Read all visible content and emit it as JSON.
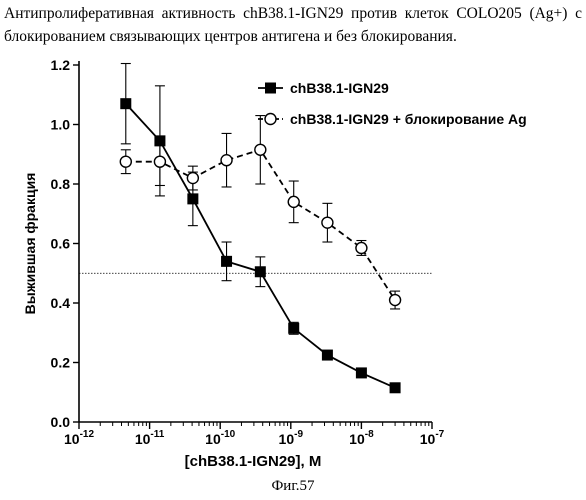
{
  "caption": "Антипролиферативная активность chB38.1-IGN29 против клеток COLO205 (Ag+) с блокированием связывающих центров антигена и без блокирования.",
  "figure_label": "Фиг.57",
  "chart_data": {
    "type": "scatter",
    "xscale": "log",
    "xlabel": "[chB38.1-IGN29], M",
    "ylabel": "Выжившая фракция",
    "xlim": [
      1e-12,
      1e-07
    ],
    "ylim": [
      0.0,
      1.2
    ],
    "x_ticks": [
      {
        "value": 1e-12,
        "base": "10",
        "exp": "-12"
      },
      {
        "value": 1e-11,
        "base": "10",
        "exp": "-11"
      },
      {
        "value": 1e-10,
        "base": "10",
        "exp": "-10"
      },
      {
        "value": 1e-09,
        "base": "10",
        "exp": "-9"
      },
      {
        "value": 1e-08,
        "base": "10",
        "exp": "-8"
      },
      {
        "value": 1e-07,
        "base": "10",
        "exp": "-7"
      }
    ],
    "y_ticks": [
      {
        "value": 0.0,
        "label": "0.0"
      },
      {
        "value": 0.2,
        "label": "0.2"
      },
      {
        "value": 0.4,
        "label": "0.4"
      },
      {
        "value": 0.6,
        "label": "0.6"
      },
      {
        "value": 0.8,
        "label": "0.8"
      },
      {
        "value": 1.0,
        "label": "1.0"
      },
      {
        "value": 1.2,
        "label": "1.2"
      }
    ],
    "reference_line": {
      "y": 0.5,
      "style": "dotted"
    },
    "grid": false,
    "legend": "top-right",
    "series": [
      {
        "name": "chB38.1-IGN29",
        "marker": "filled-square",
        "line": "solid",
        "color": "#000000",
        "x": [
          4.6e-12,
          1.4e-11,
          4.1e-11,
          1.23e-10,
          3.7e-10,
          1.1e-09,
          3.3e-09,
          1e-08,
          3e-08
        ],
        "y": [
          1.07,
          0.945,
          0.75,
          0.54,
          0.505,
          0.315,
          0.225,
          0.165,
          0.115
        ],
        "err": [
          0.135,
          0.185,
          0.09,
          0.065,
          0.05,
          0.02,
          0.015,
          0.01,
          0.015
        ]
      },
      {
        "name": "chB38.1-IGN29 + блокирование Ag",
        "marker": "open-circle",
        "line": "dashed",
        "color": "#000000",
        "x": [
          4.6e-12,
          1.4e-11,
          4.1e-11,
          1.23e-10,
          3.7e-10,
          1.1e-09,
          3.3e-09,
          1e-08,
          3e-08
        ],
        "y": [
          0.875,
          0.875,
          0.82,
          0.88,
          0.915,
          0.74,
          0.67,
          0.585,
          0.41
        ],
        "err": [
          0.04,
          0.08,
          0.04,
          0.09,
          0.115,
          0.07,
          0.065,
          0.025,
          0.03
        ]
      }
    ]
  }
}
